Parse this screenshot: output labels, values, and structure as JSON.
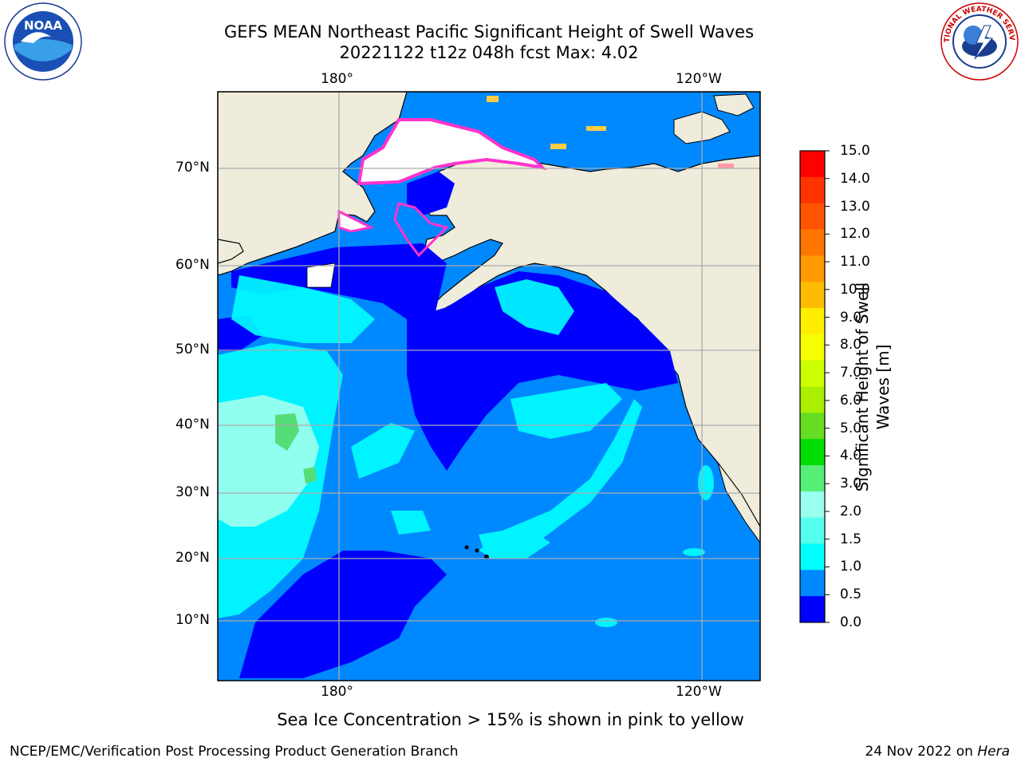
{
  "title": {
    "line1": "GEFS MEAN Northeast Pacific Significant Height of Swell Waves",
    "line2": "20221122 t12z 048h fcst   Max: 4.02"
  },
  "map": {
    "top_lon_labels": [
      "180°",
      "120°W"
    ],
    "bottom_lon_labels": [
      "180°",
      "120°W"
    ],
    "lat_labels": [
      "70°N",
      "60°N",
      "50°N",
      "40°N",
      "30°N",
      "20°N",
      "10°N"
    ]
  },
  "colorbar": {
    "label_line1": "Significant Height of Swell",
    "label_line2": "Waves [m]",
    "ticks": [
      "15.0",
      "14.0",
      "13.0",
      "12.0",
      "11.0",
      "10.0",
      "9.0",
      "8.0",
      "7.0",
      "6.0",
      "5.0",
      "4.0",
      "3.0",
      "2.0",
      "1.5",
      "1.0",
      "0.5",
      "0.0"
    ],
    "colors": [
      "#ff0000",
      "#ff3300",
      "#ff5500",
      "#ff7700",
      "#ff9900",
      "#ffbb00",
      "#ffee00",
      "#f5ff00",
      "#ccff00",
      "#aaee00",
      "#66dd22",
      "#00dd00",
      "#55ee77",
      "#99ffee",
      "#55ffee",
      "#00ffff",
      "#0088ff",
      "#0000ff"
    ]
  },
  "note": "Sea Ice Concentration > 15% is shown in pink to yellow",
  "footer": {
    "left": "NCEP/EMC/Verification Post Processing Product Generation Branch",
    "right_date": "24 Nov 2022 on ",
    "right_host": "Hera"
  },
  "logos": {
    "noaa_text": "NOAA",
    "nws_text": "NATIONAL WEATHER SERVICE"
  }
}
